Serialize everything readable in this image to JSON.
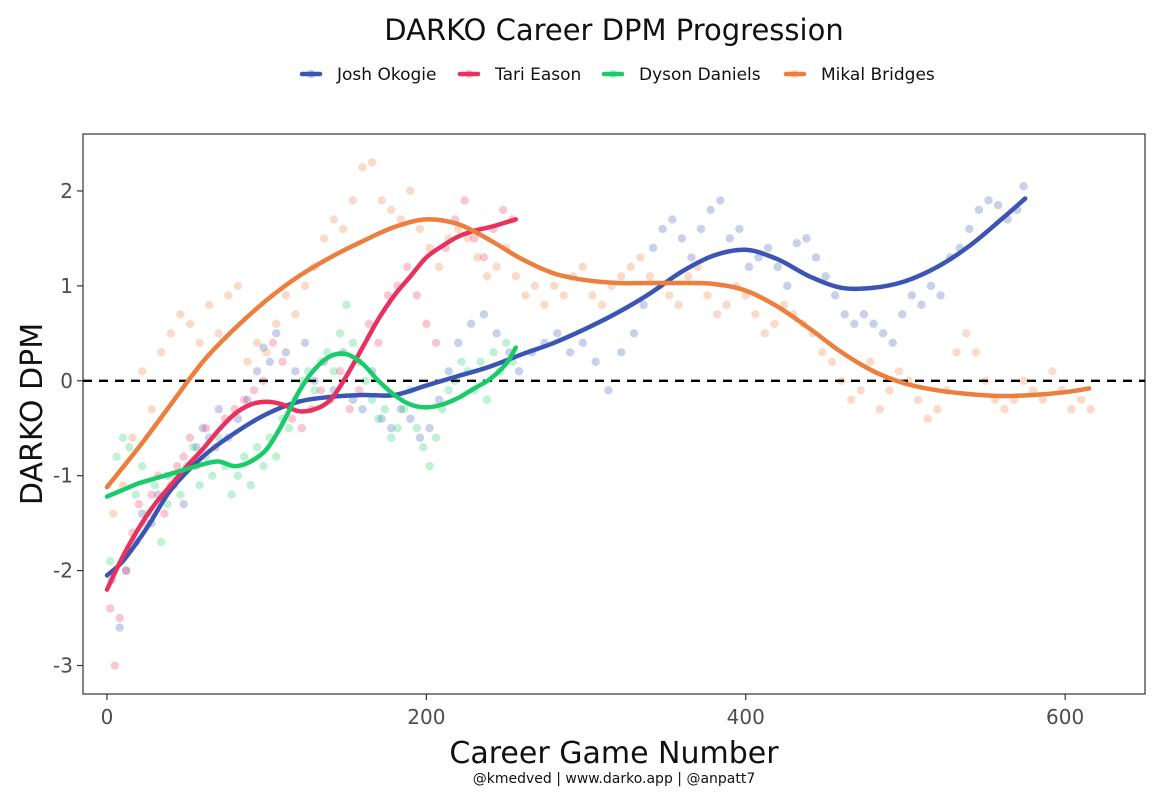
{
  "chart_data": {
    "type": "scatter",
    "title": "DARKO Career DPM Progression",
    "xlabel": "Career Game Number",
    "ylabel": "DARKO DPM",
    "caption": "@kmedved | www.darko.app | @anpatt7",
    "xlim": [
      -15,
      650
    ],
    "ylim": [
      -3.3,
      2.6
    ],
    "xticks": [
      0,
      200,
      400,
      600
    ],
    "xtick_labels": [
      "0",
      "200",
      "400",
      "600"
    ],
    "yticks": [
      -3,
      -2,
      -1,
      0,
      1,
      2
    ],
    "ytick_labels": [
      "-3",
      "-2",
      "-1",
      "0",
      "1",
      "2"
    ],
    "reference_line": {
      "y": 0,
      "style": "dashed"
    },
    "legend_position": "top",
    "series": [
      {
        "name": "Josh Okogie",
        "color": "#3a55b4",
        "smooth": {
          "x": [
            0,
            10,
            25,
            40,
            60,
            80,
            100,
            120,
            140,
            160,
            180,
            200,
            220,
            240,
            260,
            280,
            300,
            320,
            340,
            360,
            380,
            400,
            420,
            440,
            460,
            480,
            500,
            520,
            540,
            560,
            575
          ],
          "y": [
            -2.05,
            -1.9,
            -1.55,
            -1.15,
            -0.8,
            -0.55,
            -0.35,
            -0.22,
            -0.17,
            -0.15,
            -0.15,
            -0.05,
            0.05,
            0.15,
            0.28,
            0.4,
            0.55,
            0.72,
            0.92,
            1.15,
            1.32,
            1.38,
            1.28,
            1.1,
            0.98,
            0.98,
            1.05,
            1.2,
            1.42,
            1.7,
            1.92
          ]
        },
        "points": {
          "x": [
            3,
            8,
            12,
            18,
            22,
            28,
            32,
            38,
            42,
            48,
            52,
            56,
            60,
            64,
            70,
            76,
            82,
            88,
            94,
            98,
            102,
            106,
            112,
            118,
            124,
            130,
            136,
            142,
            148,
            154,
            160,
            166,
            172,
            178,
            184,
            190,
            196,
            202,
            208,
            214,
            220,
            228,
            236,
            244,
            252,
            258,
            266,
            274,
            282,
            290,
            298,
            306,
            314,
            322,
            330,
            336,
            342,
            348,
            354,
            360,
            366,
            372,
            378,
            384,
            390,
            396,
            402,
            408,
            414,
            420,
            426,
            432,
            438,
            444,
            450,
            456,
            462,
            468,
            474,
            480,
            486,
            492,
            498,
            504,
            510,
            516,
            522,
            528,
            534,
            540,
            546,
            552,
            558,
            564,
            570,
            574
          ],
          "y": [
            -2.1,
            -2.6,
            -2.0,
            -1.7,
            -1.4,
            -1.5,
            -1.2,
            -1.0,
            -1.1,
            -1.3,
            -0.9,
            -0.7,
            -0.5,
            -0.6,
            -0.3,
            -0.6,
            -0.4,
            -0.2,
            0.1,
            0.35,
            0.2,
            0.5,
            0.3,
            0.1,
            0.4,
            0.0,
            0.2,
            -0.1,
            0.3,
            -0.2,
            -0.3,
            0.1,
            -0.4,
            -0.5,
            -0.3,
            -0.4,
            -0.6,
            -0.5,
            -0.2,
            0.1,
            0.4,
            0.6,
            0.7,
            0.5,
            0.3,
            0.1,
            0.3,
            0.4,
            0.5,
            0.3,
            0.4,
            0.2,
            -0.1,
            0.3,
            0.5,
            0.8,
            1.4,
            1.6,
            1.7,
            1.5,
            1.3,
            1.6,
            1.8,
            1.9,
            1.5,
            1.6,
            1.2,
            1.3,
            1.4,
            1.2,
            1.0,
            1.45,
            1.5,
            1.3,
            1.1,
            0.9,
            0.7,
            0.6,
            0.7,
            0.6,
            0.5,
            0.4,
            0.7,
            0.9,
            0.8,
            1.0,
            0.9,
            1.3,
            1.4,
            1.6,
            1.8,
            1.9,
            1.85,
            1.7,
            1.8,
            2.05
          ]
        }
      },
      {
        "name": "Tari Eason",
        "color": "#e8315d",
        "smooth": {
          "x": [
            0,
            10,
            20,
            30,
            40,
            50,
            60,
            70,
            80,
            90,
            100,
            110,
            120,
            130,
            140,
            150,
            160,
            170,
            180,
            190,
            200,
            210,
            220,
            230,
            240,
            250,
            256
          ],
          "y": [
            -2.2,
            -1.85,
            -1.55,
            -1.3,
            -1.1,
            -0.9,
            -0.72,
            -0.52,
            -0.35,
            -0.25,
            -0.22,
            -0.25,
            -0.32,
            -0.3,
            -0.2,
            0.05,
            0.35,
            0.65,
            0.9,
            1.1,
            1.3,
            1.42,
            1.52,
            1.58,
            1.62,
            1.67,
            1.7
          ]
        },
        "points": {
          "x": [
            2,
            5,
            8,
            12,
            16,
            20,
            24,
            28,
            32,
            36,
            40,
            44,
            48,
            52,
            56,
            62,
            68,
            74,
            80,
            86,
            92,
            98,
            104,
            110,
            116,
            122,
            128,
            134,
            140,
            146,
            152,
            158,
            164,
            170,
            176,
            182,
            188,
            194,
            200,
            206,
            212,
            218,
            224,
            230,
            236,
            242,
            248,
            254
          ],
          "y": [
            -2.4,
            -3.0,
            -2.5,
            -2.0,
            -1.6,
            -1.3,
            -1.5,
            -1.2,
            -1.0,
            -1.4,
            -1.1,
            -0.9,
            -0.8,
            -0.6,
            -0.9,
            -0.5,
            -0.7,
            -0.4,
            -0.3,
            -0.2,
            -0.1,
            0.0,
            0.4,
            0.2,
            -0.4,
            -0.5,
            -0.3,
            -0.1,
            -0.2,
            0.1,
            -0.3,
            -0.1,
            0.6,
            0.4,
            0.9,
            1.0,
            1.2,
            0.9,
            0.6,
            0.4,
            1.4,
            1.7,
            1.9,
            1.5,
            1.3,
            1.6,
            1.8,
            1.7
          ]
        }
      },
      {
        "name": "Dyson Daniels",
        "color": "#19cc69",
        "smooth": {
          "x": [
            0,
            10,
            20,
            30,
            40,
            50,
            60,
            70,
            80,
            90,
            100,
            110,
            120,
            130,
            140,
            150,
            160,
            170,
            180,
            190,
            200,
            210,
            220,
            230,
            240,
            250,
            256
          ],
          "y": [
            -1.22,
            -1.15,
            -1.08,
            -1.03,
            -0.98,
            -0.93,
            -0.88,
            -0.85,
            -0.9,
            -0.85,
            -0.72,
            -0.45,
            -0.12,
            0.12,
            0.26,
            0.28,
            0.18,
            0.0,
            -0.15,
            -0.25,
            -0.28,
            -0.25,
            -0.18,
            -0.08,
            0.02,
            0.18,
            0.35
          ]
        },
        "points": {
          "x": [
            2,
            6,
            10,
            14,
            18,
            22,
            26,
            30,
            34,
            38,
            42,
            46,
            50,
            54,
            58,
            62,
            66,
            70,
            74,
            78,
            82,
            86,
            90,
            94,
            98,
            102,
            106,
            110,
            114,
            118,
            122,
            126,
            130,
            134,
            138,
            142,
            146,
            150,
            154,
            158,
            162,
            166,
            170,
            174,
            178,
            182,
            186,
            190,
            194,
            198,
            202,
            206,
            210,
            214,
            218,
            222,
            226,
            230,
            234,
            238,
            242,
            246,
            250,
            254
          ],
          "y": [
            -1.9,
            -0.8,
            -0.6,
            -0.7,
            -1.2,
            -0.9,
            -1.4,
            -1.1,
            -1.7,
            -1.3,
            -1.0,
            -1.2,
            -0.9,
            -0.7,
            -1.1,
            -0.8,
            -1.0,
            -0.6,
            -0.9,
            -1.2,
            -1.0,
            -0.8,
            -1.1,
            -0.7,
            -0.9,
            -0.6,
            -0.8,
            -0.4,
            -0.5,
            -0.2,
            0.0,
            0.1,
            -0.1,
            0.2,
            0.3,
            0.1,
            0.5,
            0.8,
            0.4,
            0.2,
            0.0,
            -0.2,
            -0.4,
            -0.3,
            -0.6,
            -0.5,
            -0.3,
            -0.1,
            -0.5,
            -0.7,
            -0.9,
            -0.6,
            -0.3,
            -0.1,
            0.0,
            0.2,
            0.1,
            -0.1,
            0.2,
            -0.2,
            0.3,
            0.1,
            0.4,
            0.2
          ]
        }
      },
      {
        "name": "Mikal Bridges",
        "color": "#ec7f3e",
        "smooth": {
          "x": [
            0,
            20,
            40,
            60,
            80,
            100,
            120,
            140,
            160,
            180,
            200,
            220,
            240,
            260,
            280,
            300,
            320,
            340,
            360,
            380,
            400,
            420,
            440,
            460,
            480,
            500,
            520,
            540,
            560,
            580,
            600,
            615
          ],
          "y": [
            -1.12,
            -0.7,
            -0.25,
            0.2,
            0.55,
            0.85,
            1.1,
            1.3,
            1.47,
            1.62,
            1.7,
            1.65,
            1.48,
            1.28,
            1.13,
            1.06,
            1.03,
            1.03,
            1.03,
            1.02,
            0.95,
            0.78,
            0.55,
            0.3,
            0.1,
            -0.03,
            -0.1,
            -0.14,
            -0.16,
            -0.15,
            -0.12,
            -0.08
          ]
        },
        "points": {
          "x": [
            4,
            10,
            16,
            22,
            28,
            34,
            40,
            46,
            52,
            58,
            64,
            70,
            76,
            82,
            88,
            94,
            100,
            106,
            112,
            118,
            124,
            130,
            136,
            142,
            148,
            154,
            160,
            166,
            172,
            178,
            184,
            190,
            196,
            202,
            208,
            214,
            220,
            226,
            232,
            238,
            244,
            250,
            256,
            262,
            268,
            274,
            280,
            286,
            292,
            298,
            304,
            310,
            316,
            322,
            328,
            334,
            340,
            346,
            352,
            358,
            364,
            370,
            376,
            382,
            388,
            394,
            400,
            406,
            412,
            418,
            424,
            430,
            436,
            442,
            448,
            454,
            460,
            466,
            472,
            478,
            484,
            490,
            496,
            502,
            508,
            514,
            520,
            526,
            532,
            538,
            544,
            550,
            556,
            562,
            568,
            574,
            580,
            586,
            592,
            598,
            604,
            610,
            616
          ],
          "y": [
            -1.4,
            -1.1,
            -0.6,
            0.1,
            -0.3,
            0.3,
            0.5,
            0.7,
            0.6,
            0.4,
            0.8,
            0.5,
            0.9,
            1.0,
            0.2,
            0.4,
            0.3,
            0.6,
            0.9,
            0.7,
            1.0,
            1.2,
            1.5,
            1.7,
            1.6,
            1.9,
            2.25,
            2.3,
            1.9,
            1.8,
            1.7,
            2.0,
            1.6,
            1.4,
            1.2,
            1.5,
            1.6,
            1.5,
            1.3,
            1.1,
            1.2,
            1.4,
            1.1,
            0.9,
            1.0,
            0.8,
            1.0,
            0.9,
            1.1,
            1.2,
            0.9,
            0.8,
            1.0,
            1.1,
            1.2,
            1.3,
            1.1,
            1.0,
            0.9,
            0.8,
            1.1,
            1.2,
            0.9,
            0.7,
            0.8,
            1.0,
            0.9,
            0.7,
            0.5,
            0.6,
            0.8,
            0.7,
            0.6,
            0.5,
            0.3,
            0.2,
            0.0,
            -0.2,
            -0.1,
            0.2,
            -0.3,
            -0.1,
            0.1,
            0.0,
            -0.2,
            -0.4,
            -0.3,
            -0.1,
            0.3,
            0.5,
            0.3,
            0.0,
            -0.2,
            -0.3,
            -0.2,
            0.0,
            -0.1,
            -0.2,
            0.1,
            -0.1,
            -0.3,
            -0.2,
            -0.3
          ]
        }
      }
    ]
  }
}
